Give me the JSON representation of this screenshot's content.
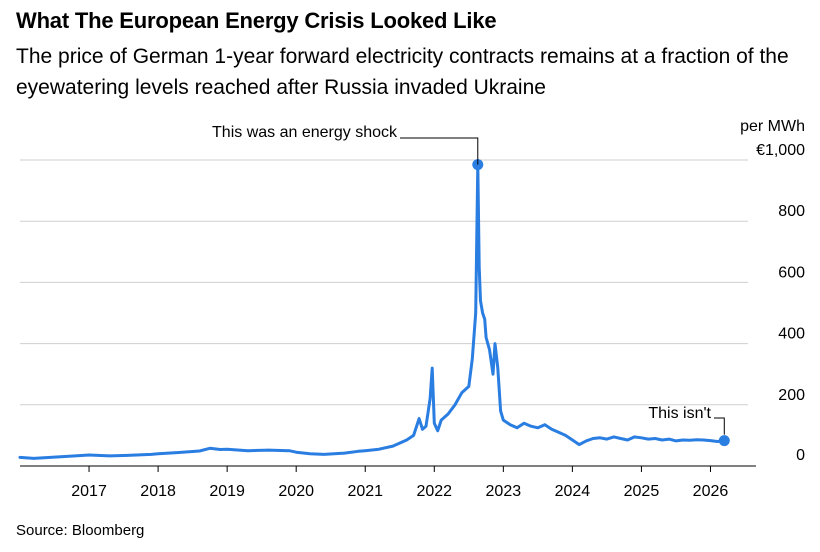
{
  "title": "What The European Energy Crisis Looked Like",
  "subtitle": "The price of German 1-year forward electricity contracts remains at a fraction of the eyewatering levels reached after Russia invaded Ukraine",
  "source": "Source: Bloomberg",
  "colors": {
    "line": "#2a7de1",
    "grid": "#cfcfcf",
    "axis": "#000000"
  },
  "chart_data": {
    "type": "line",
    "title": "What The European Energy Crisis Looked Like",
    "ylabel": "per MWh",
    "y_unit_label": "per MWh",
    "ylim": [
      0,
      1000
    ],
    "xlim": [
      2016.0,
      2026.5
    ],
    "y_ticks": [
      {
        "value": 0,
        "label": "0"
      },
      {
        "value": 200,
        "label": "200"
      },
      {
        "value": 400,
        "label": "400"
      },
      {
        "value": 600,
        "label": "600"
      },
      {
        "value": 800,
        "label": "800"
      },
      {
        "value": 1000,
        "label": "€1,000"
      }
    ],
    "x_ticks": [
      {
        "value": 2017,
        "label": "2017"
      },
      {
        "value": 2018,
        "label": "2018"
      },
      {
        "value": 2019,
        "label": "2019"
      },
      {
        "value": 2020,
        "label": "2020"
      },
      {
        "value": 2021,
        "label": "2021"
      },
      {
        "value": 2022,
        "label": "2022"
      },
      {
        "value": 2023,
        "label": "2023"
      },
      {
        "value": 2024,
        "label": "2024"
      },
      {
        "value": 2025,
        "label": "2025"
      },
      {
        "value": 2026,
        "label": "2026"
      }
    ],
    "series": [
      {
        "name": "German 1-year forward electricity",
        "x": [
          2016.0,
          2016.2,
          2016.5,
          2016.8,
          2017.0,
          2017.3,
          2017.6,
          2017.9,
          2018.0,
          2018.3,
          2018.6,
          2018.75,
          2018.9,
          2019.0,
          2019.3,
          2019.6,
          2019.9,
          2020.0,
          2020.2,
          2020.4,
          2020.7,
          2020.9,
          2021.0,
          2021.2,
          2021.4,
          2021.6,
          2021.7,
          2021.78,
          2021.83,
          2021.88,
          2021.94,
          2021.97,
          2022.0,
          2022.05,
          2022.1,
          2022.2,
          2022.3,
          2022.4,
          2022.5,
          2022.55,
          2022.6,
          2022.63,
          2022.65,
          2022.67,
          2022.7,
          2022.73,
          2022.75,
          2022.8,
          2022.85,
          2022.88,
          2022.92,
          2022.96,
          2023.0,
          2023.1,
          2023.2,
          2023.3,
          2023.4,
          2023.5,
          2023.6,
          2023.7,
          2023.8,
          2023.9,
          2024.0,
          2024.1,
          2024.2,
          2024.3,
          2024.4,
          2024.5,
          2024.6,
          2024.7,
          2024.8,
          2024.9,
          2025.0,
          2025.1,
          2025.2,
          2025.3,
          2025.4,
          2025.5,
          2025.6,
          2025.7,
          2025.8,
          2025.9,
          2026.0,
          2026.1,
          2026.2
        ],
        "values": [
          28,
          25,
          29,
          33,
          36,
          33,
          35,
          38,
          40,
          44,
          49,
          58,
          54,
          55,
          50,
          52,
          50,
          45,
          40,
          38,
          42,
          48,
          50,
          55,
          65,
          85,
          100,
          155,
          120,
          130,
          220,
          320,
          140,
          115,
          150,
          170,
          200,
          240,
          260,
          350,
          500,
          985,
          650,
          540,
          500,
          480,
          420,
          380,
          300,
          400,
          320,
          180,
          150,
          135,
          125,
          140,
          130,
          125,
          135,
          120,
          110,
          100,
          85,
          70,
          82,
          90,
          92,
          88,
          95,
          90,
          85,
          95,
          92,
          88,
          90,
          85,
          88,
          82,
          85,
          84,
          86,
          85,
          83,
          80,
          83
        ]
      }
    ],
    "annotations": [
      {
        "text": "This was an energy shock",
        "x": 2022.63,
        "y": 985
      },
      {
        "text": "This isn't",
        "x": 2026.2,
        "y": 83
      }
    ]
  }
}
